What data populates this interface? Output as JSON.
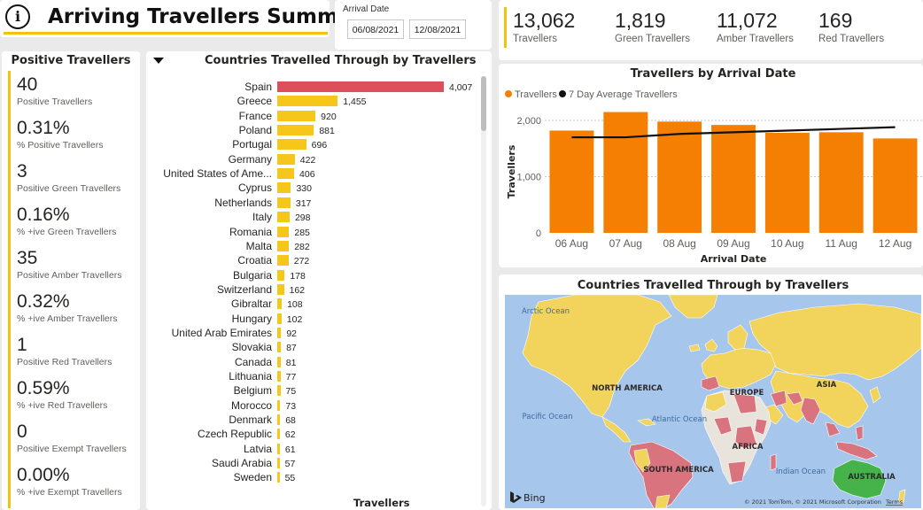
{
  "header": {
    "title": "Arriving Travellers Summary",
    "info_icon": "i"
  },
  "date_filter": {
    "label": "Arrival Date",
    "start": "06/08/2021",
    "end": "12/08/2021"
  },
  "kpis": [
    {
      "value": "13,062",
      "label": "Travellers"
    },
    {
      "value": "1,819",
      "label": "Green Travellers"
    },
    {
      "value": "11,072",
      "label": "Amber Travellers"
    },
    {
      "value": "169",
      "label": "Red Travellers"
    }
  ],
  "positive": {
    "title": "Positive Travellers",
    "stats": [
      {
        "value": "40",
        "label": "Positive Travellers"
      },
      {
        "value": "0.31%",
        "label": "% Positive Travellers"
      },
      {
        "value": "3",
        "label": "Positive Green Travellers"
      },
      {
        "value": "0.16%",
        "label": "% +ive Green Travellers"
      },
      {
        "value": "35",
        "label": "Positive Amber Travellers"
      },
      {
        "value": "0.32%",
        "label": "% +ive Amber Travellers"
      },
      {
        "value": "1",
        "label": "Positive Red Travellers"
      },
      {
        "value": "0.59%",
        "label": "% +ive Red Travellers"
      },
      {
        "value": "0",
        "label": "Positive Exempt Travellers"
      },
      {
        "value": "0.00%",
        "label": "% +ive Exempt Travellers"
      }
    ]
  },
  "countries_chart": {
    "title": "Countries Travelled Through by Travellers",
    "xlabel": "Travellers",
    "colors": {
      "red": "#dd4f5b",
      "amber": "#f6c61a"
    },
    "chart_data": {
      "type": "bar",
      "orientation": "horizontal",
      "categories": [
        "Spain",
        "Greece",
        "France",
        "Poland",
        "Portugal",
        "Germany",
        "United States of Ame...",
        "Cyprus",
        "Netherlands",
        "Italy",
        "Romania",
        "Malta",
        "Croatia",
        "Bulgaria",
        "Switzerland",
        "Gibraltar",
        "Hungary",
        "United Arab Emirates",
        "Slovakia",
        "Canada",
        "Lithuania",
        "Belgium",
        "Morocco",
        "Denmark",
        "Czech Republic",
        "Latvia",
        "Saudi Arabia",
        "Sweden"
      ],
      "values": [
        4007,
        1455,
        920,
        881,
        696,
        422,
        406,
        330,
        317,
        298,
        285,
        282,
        272,
        178,
        162,
        108,
        102,
        92,
        87,
        81,
        77,
        75,
        73,
        68,
        62,
        61,
        57,
        55
      ],
      "value_labels": [
        "4,007",
        "1,455",
        "920",
        "881",
        "696",
        "422",
        "406",
        "330",
        "317",
        "298",
        "285",
        "282",
        "272",
        "178",
        "162",
        "108",
        "102",
        "92",
        "87",
        "81",
        "77",
        "75",
        "73",
        "68",
        "62",
        "61",
        "57",
        "55"
      ],
      "bar_colors": [
        "red",
        "amber",
        "amber",
        "amber",
        "amber",
        "amber",
        "amber",
        "amber",
        "amber",
        "amber",
        "amber",
        "amber",
        "amber",
        "amber",
        "amber",
        "amber",
        "amber",
        "amber",
        "amber",
        "amber",
        "amber",
        "amber",
        "amber",
        "amber",
        "amber",
        "amber",
        "amber",
        "amber"
      ]
    }
  },
  "arrivals_chart": {
    "title": "Travellers by Arrival Date",
    "legend": [
      "Travellers",
      "7 Day Average Travellers"
    ],
    "xlabel": "Arrival Date",
    "ylabel": "Travellers",
    "colors": {
      "bar": "#f57f02",
      "line": "#111111"
    },
    "chart_data": {
      "type": "bar",
      "categories": [
        "06 Aug",
        "07 Aug",
        "08 Aug",
        "09 Aug",
        "10 Aug",
        "11 Aug",
        "12 Aug"
      ],
      "series": [
        {
          "name": "Travellers",
          "type": "bar",
          "values": [
            1820,
            2150,
            1980,
            1920,
            1780,
            1790,
            1680
          ]
        },
        {
          "name": "7 Day Average Travellers",
          "type": "line",
          "values": [
            1700,
            1700,
            1760,
            1790,
            1820,
            1850,
            1880
          ]
        }
      ],
      "yticks": [
        "0",
        "1,000",
        "2,000"
      ],
      "ylim": [
        0,
        2300
      ]
    }
  },
  "map": {
    "title": "Countries Travelled Through by Travellers",
    "ocean_labels": [
      "Arctic Ocean",
      "Pacific Ocean",
      "Atlantic Ocean",
      "Indian Ocean"
    ],
    "region_labels": [
      "NORTH AMERICA",
      "EUROPE",
      "ASIA",
      "AFRICA",
      "SOUTH AMERICA",
      "AUSTRALIA"
    ],
    "attribution": "© 2021 TomTom, © 2021 Microsoft Corporation",
    "terms": "Terms",
    "bing": "Bing",
    "colors": {
      "ocean": "#a6c6ec",
      "amber": "#f2d35b",
      "red": "#d9737e",
      "green": "#45b34a",
      "grey": "#e8e4dc"
    }
  }
}
